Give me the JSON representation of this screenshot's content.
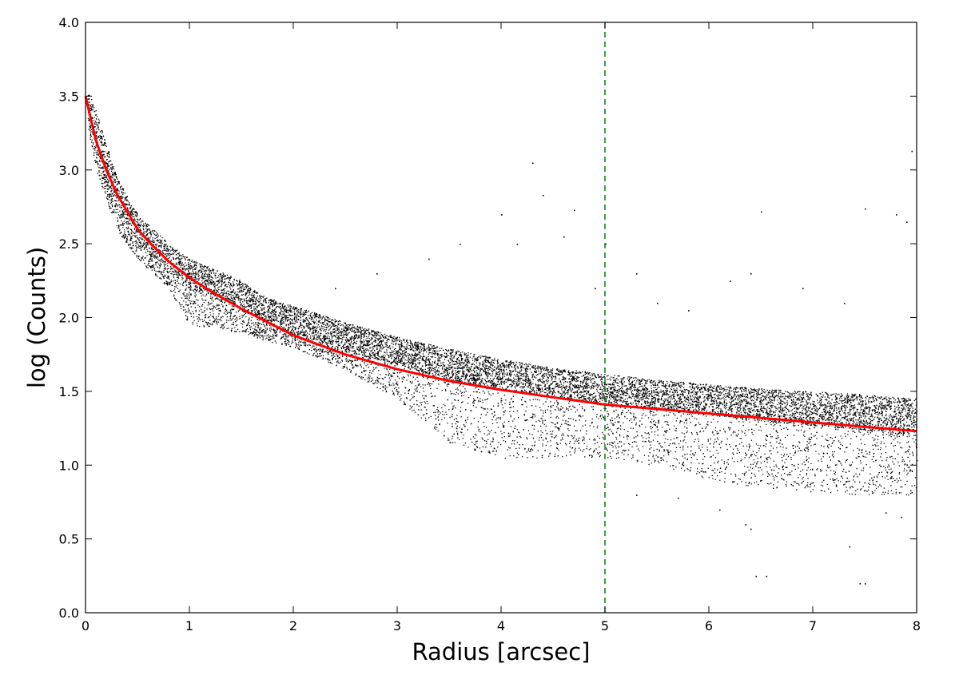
{
  "chart_data": {
    "type": "scatter",
    "title": "",
    "xlabel": "Radius [arcsec]",
    "ylabel": "log (Counts)",
    "xlim": [
      0,
      8
    ],
    "ylim": [
      0.0,
      4.0
    ],
    "xticks": [
      "0",
      "1",
      "2",
      "3",
      "4",
      "5",
      "6",
      "7",
      "8"
    ],
    "yticks": [
      "0.0",
      "0.5",
      "1.0",
      "1.5",
      "2.0",
      "2.5",
      "3.0",
      "3.5",
      "4.0"
    ],
    "grid": false,
    "legend": "none",
    "colors": {
      "points": "#000000",
      "fit": "#ff0000",
      "vline": "#008000"
    },
    "series": [
      {
        "kind": "scatter",
        "color": "#000000",
        "description_points": "dense black pixel data",
        "envelope": {
          "x": [
            0.02,
            0.1,
            0.3,
            0.5,
            0.8,
            1.0,
            1.5,
            1.7,
            2.0,
            2.5,
            3.0,
            3.5,
            4.0,
            4.5,
            5.0,
            5.5,
            6.0,
            6.5,
            7.0,
            7.5,
            8.0
          ],
          "upper": [
            3.55,
            3.4,
            2.95,
            2.7,
            2.5,
            2.4,
            2.25,
            2.15,
            2.08,
            1.97,
            1.87,
            1.79,
            1.72,
            1.66,
            1.62,
            1.58,
            1.55,
            1.52,
            1.5,
            1.48,
            1.45
          ],
          "dense_lower": [
            3.4,
            3.1,
            2.75,
            2.5,
            2.3,
            2.2,
            2.05,
            1.95,
            1.9,
            1.78,
            1.68,
            1.58,
            1.52,
            1.46,
            1.42,
            1.38,
            1.34,
            1.3,
            1.27,
            1.24,
            1.2
          ],
          "sparse_lower": [
            3.3,
            3.0,
            2.6,
            2.4,
            2.2,
            1.95,
            1.9,
            1.85,
            1.8,
            1.65,
            1.45,
            1.15,
            1.05,
            1.05,
            1.05,
            1.0,
            0.9,
            0.85,
            0.82,
            0.8,
            0.8
          ]
        },
        "outliers": [
          [
            4.3,
            3.05
          ],
          [
            4.0,
            2.7
          ],
          [
            4.4,
            2.83
          ],
          [
            4.7,
            2.73
          ],
          [
            3.6,
            2.5
          ],
          [
            4.15,
            2.5
          ],
          [
            2.8,
            2.3
          ],
          [
            3.3,
            2.4
          ],
          [
            6.5,
            2.72
          ],
          [
            7.5,
            2.74
          ],
          [
            7.8,
            2.7
          ],
          [
            7.9,
            2.65
          ],
          [
            7.95,
            3.13
          ],
          [
            6.2,
            2.25
          ],
          [
            6.4,
            2.3
          ],
          [
            6.9,
            2.2
          ],
          [
            7.3,
            2.1
          ],
          [
            5.3,
            2.3
          ],
          [
            5.5,
            2.1
          ],
          [
            4.9,
            2.2
          ],
          [
            5.8,
            2.05
          ],
          [
            2.4,
            2.2
          ],
          [
            4.6,
            2.55
          ],
          [
            5.0,
            2.5
          ],
          [
            6.35,
            0.6
          ],
          [
            6.4,
            0.57
          ],
          [
            6.45,
            0.25
          ],
          [
            6.55,
            0.25
          ],
          [
            7.35,
            0.45
          ],
          [
            7.45,
            0.2
          ],
          [
            7.5,
            0.2
          ],
          [
            7.7,
            0.68
          ],
          [
            7.85,
            0.65
          ],
          [
            5.3,
            0.8
          ],
          [
            5.7,
            0.78
          ],
          [
            6.1,
            0.7
          ]
        ]
      },
      {
        "kind": "fit-line",
        "color": "#ff0000",
        "x": [
          0.0,
          0.1,
          0.2,
          0.3,
          0.4,
          0.5,
          0.6,
          0.8,
          1.0,
          1.2,
          1.5,
          2.0,
          2.5,
          3.0,
          3.5,
          4.0,
          4.5,
          5.0,
          5.5,
          6.0,
          6.5,
          7.0,
          7.5,
          8.0
        ],
        "y": [
          3.5,
          3.2,
          3.0,
          2.84,
          2.72,
          2.6,
          2.52,
          2.38,
          2.27,
          2.18,
          2.06,
          1.88,
          1.75,
          1.65,
          1.57,
          1.51,
          1.46,
          1.41,
          1.38,
          1.35,
          1.32,
          1.29,
          1.26,
          1.23
        ]
      }
    ],
    "reference_line": {
      "orientation": "vertical",
      "x": 5,
      "style": "dashed",
      "color": "#008000"
    }
  }
}
